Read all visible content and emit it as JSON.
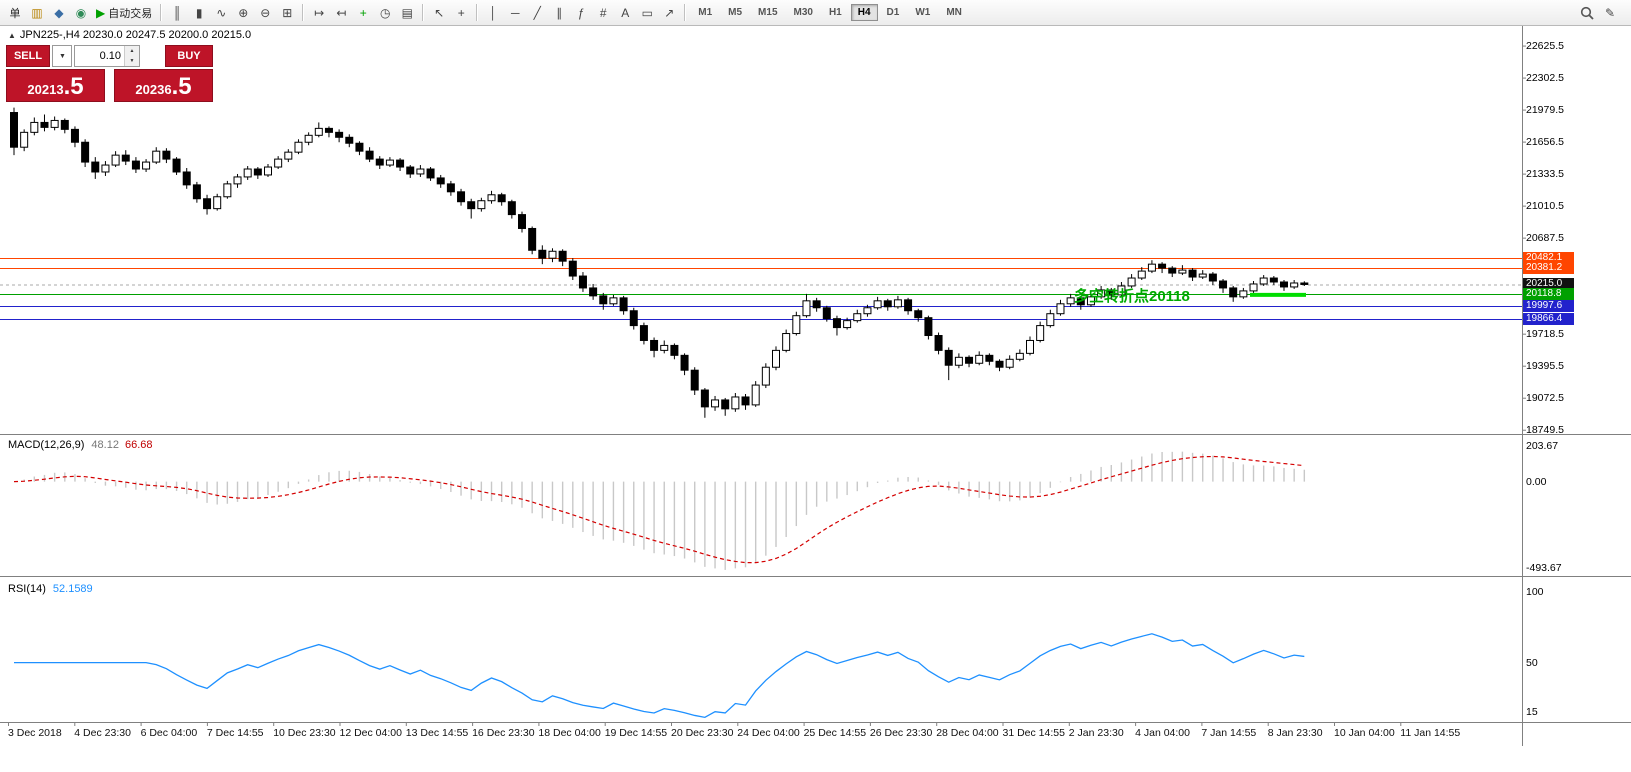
{
  "toolbar": {
    "groups": [
      [
        {
          "name": "new-order-button",
          "text": "单"
        },
        {
          "name": "charts-icon",
          "glyph": "▥",
          "color": "#B8860B"
        },
        {
          "name": "profiles-icon",
          "glyph": "◆",
          "color": "#3A6EA5"
        },
        {
          "name": "market-watch-icon",
          "glyph": "◉",
          "color": "#2E8B57"
        },
        {
          "name": "autotrading-button",
          "glyph": "▶",
          "color": "#00A000",
          "text": "自动交易"
        }
      ],
      [
        {
          "name": "bar-chart-icon",
          "glyph": "║"
        },
        {
          "name": "candlestick-chart-icon",
          "glyph": "▮"
        },
        {
          "name": "line-chart-icon",
          "glyph": "∿"
        },
        {
          "name": "zoom-in-icon",
          "glyph": "⊕"
        },
        {
          "name": "zoom-out-icon",
          "glyph": "⊖"
        },
        {
          "name": "tile-windows-icon",
          "glyph": "⊞"
        }
      ],
      [
        {
          "name": "auto-scroll-icon",
          "glyph": "↦"
        },
        {
          "name": "chart-shift-icon",
          "glyph": "↤"
        },
        {
          "name": "indicators-icon",
          "glyph": "+",
          "color": "#00A000"
        },
        {
          "name": "periods-icon",
          "glyph": "◷"
        },
        {
          "name": "templates-icon",
          "glyph": "▤"
        }
      ],
      [
        {
          "name": "cursor-icon",
          "glyph": "↖"
        },
        {
          "name": "crosshair-icon",
          "glyph": "+"
        }
      ],
      [
        {
          "name": "vertical-line-icon",
          "glyph": "│"
        },
        {
          "name": "horizontal-line-icon",
          "glyph": "─"
        },
        {
          "name": "trendline-icon",
          "glyph": "╱"
        },
        {
          "name": "channel-icon",
          "glyph": "∥"
        },
        {
          "name": "fibonacci-icon",
          "glyph": "ƒ"
        },
        {
          "name": "cycle-lines-icon",
          "glyph": "#"
        },
        {
          "name": "text-icon",
          "glyph": "A"
        },
        {
          "name": "label-icon",
          "glyph": "▭"
        },
        {
          "name": "arrows-icon",
          "glyph": "↗"
        }
      ]
    ],
    "timeframes": [
      "M1",
      "M5",
      "M15",
      "M30",
      "H1",
      "H4",
      "D1",
      "W1",
      "MN"
    ],
    "active_timeframe": "H4",
    "right_icons": [
      {
        "name": "search-icon"
      },
      {
        "name": "edit-icon",
        "glyph": "✎"
      }
    ]
  },
  "chart": {
    "title_icon": "▲",
    "symbol_title": "JPN225-,H4  20230.0 20247.5 20200.0 20215.0",
    "trade_panel": {
      "sell_label": "SELL",
      "buy_label": "BUY",
      "dropdown_glyph": "▼",
      "spin_up": "▲",
      "spin_down": "▼",
      "volume": "0.10",
      "sell_price_main": "20213",
      "sell_price_pips": ".5",
      "buy_price_main": "20236",
      "buy_price_pips": ".5"
    }
  },
  "chart_data": {
    "type": "candlestick",
    "symbol": "JPN225-",
    "timeframe": "H4",
    "current_bar": {
      "open": 20230.0,
      "high": 20247.5,
      "low": 20200.0,
      "close": 20215.0
    },
    "bid": 20213.5,
    "ask": 20236.5,
    "y_ticks": [
      22625.5,
      22302.5,
      21979.5,
      21656.5,
      21333.5,
      21010.5,
      20687.5,
      19718.5,
      19395.5,
      19072.5,
      18749.5
    ],
    "x_labels": [
      "3 Dec 2018",
      "4 Dec 23:30",
      "6 Dec 04:00",
      "7 Dec 14:55",
      "10 Dec 23:30",
      "12 Dec 04:00",
      "13 Dec 14:55",
      "16 Dec 23:30",
      "18 Dec 04:00",
      "19 Dec 14:55",
      "20 Dec 23:30",
      "24 Dec 04:00",
      "25 Dec 14:55",
      "26 Dec 23:30",
      "28 Dec 04:00",
      "31 Dec 14:55",
      "2 Jan 23:30",
      "4 Jan 04:00",
      "7 Jan 14:55",
      "8 Jan 23:30",
      "10 Jan 04:00",
      "11 Jan 14:55"
    ],
    "hlines": [
      {
        "price": 20482.1,
        "color": "#FF4500",
        "label": "20482.1"
      },
      {
        "price": 20381.2,
        "color": "#FF4500",
        "label": "20381.2"
      },
      {
        "price": 20215.0,
        "color": "#A9A9A9",
        "label": "20215.0",
        "style": "bid",
        "badge_color": "#111111"
      },
      {
        "price": 20118.8,
        "color": "#00A000",
        "label": "20118.8"
      },
      {
        "price": 19997.6,
        "color": "#2222CC",
        "label": "19997.6"
      },
      {
        "price": 19866.4,
        "color": "#2222CC",
        "label": "19866.4"
      }
    ],
    "annotation": {
      "text": "多空转折点20118",
      "color": "#00AA00"
    },
    "highlight_segment": {
      "price": 20110,
      "color": "#00DD00"
    },
    "indicators": [
      {
        "name": "MACD(12,26,9)",
        "values": [
          "48.12",
          "66.68"
        ],
        "axis": [
          "203.67",
          "0.00",
          "-493.67"
        ]
      },
      {
        "name": "RSI(14)",
        "values": [
          "52.1589"
        ],
        "axis": [
          "100",
          "50",
          "15"
        ]
      }
    ],
    "ohlc": [
      [
        21950,
        22000,
        21520,
        21600
      ],
      [
        21600,
        21780,
        21560,
        21750
      ],
      [
        21750,
        21900,
        21720,
        21850
      ],
      [
        21850,
        21930,
        21760,
        21800
      ],
      [
        21800,
        21910,
        21770,
        21870
      ],
      [
        21870,
        21890,
        21740,
        21780
      ],
      [
        21780,
        21810,
        21600,
        21650
      ],
      [
        21650,
        21680,
        21400,
        21450
      ],
      [
        21450,
        21500,
        21280,
        21350
      ],
      [
        21350,
        21460,
        21310,
        21420
      ],
      [
        21420,
        21560,
        21400,
        21520
      ],
      [
        21520,
        21570,
        21420,
        21460
      ],
      [
        21460,
        21500,
        21340,
        21380
      ],
      [
        21380,
        21480,
        21350,
        21450
      ],
      [
        21450,
        21600,
        21430,
        21560
      ],
      [
        21560,
        21590,
        21440,
        21480
      ],
      [
        21480,
        21500,
        21320,
        21350
      ],
      [
        21350,
        21390,
        21180,
        21220
      ],
      [
        21220,
        21250,
        21040,
        21080
      ],
      [
        21080,
        21120,
        20920,
        20980
      ],
      [
        20980,
        21130,
        20960,
        21100
      ],
      [
        21100,
        21260,
        21080,
        21230
      ],
      [
        21230,
        21330,
        21190,
        21300
      ],
      [
        21300,
        21410,
        21270,
        21380
      ],
      [
        21380,
        21400,
        21280,
        21320
      ],
      [
        21320,
        21430,
        21300,
        21400
      ],
      [
        21400,
        21510,
        21380,
        21480
      ],
      [
        21480,
        21580,
        21450,
        21550
      ],
      [
        21550,
        21680,
        21530,
        21650
      ],
      [
        21650,
        21750,
        21620,
        21720
      ],
      [
        21720,
        21850,
        21700,
        21790
      ],
      [
        21790,
        21810,
        21700,
        21750
      ],
      [
        21750,
        21780,
        21650,
        21700
      ],
      [
        21700,
        21730,
        21600,
        21640
      ],
      [
        21640,
        21660,
        21520,
        21560
      ],
      [
        21560,
        21600,
        21450,
        21480
      ],
      [
        21480,
        21510,
        21380,
        21420
      ],
      [
        21420,
        21500,
        21400,
        21470
      ],
      [
        21470,
        21490,
        21360,
        21400
      ],
      [
        21400,
        21420,
        21290,
        21330
      ],
      [
        21330,
        21420,
        21300,
        21380
      ],
      [
        21380,
        21400,
        21260,
        21290
      ],
      [
        21290,
        21320,
        21190,
        21230
      ],
      [
        21230,
        21260,
        21110,
        21150
      ],
      [
        21150,
        21180,
        21010,
        21050
      ],
      [
        21050,
        21080,
        20880,
        20980
      ],
      [
        20980,
        21090,
        20950,
        21060
      ],
      [
        21060,
        21160,
        21030,
        21120
      ],
      [
        21120,
        21140,
        21010,
        21050
      ],
      [
        21050,
        21070,
        20880,
        20920
      ],
      [
        20920,
        20950,
        20740,
        20780
      ],
      [
        20780,
        20800,
        20520,
        20560
      ],
      [
        20560,
        20610,
        20420,
        20480
      ],
      [
        20480,
        20580,
        20440,
        20550
      ],
      [
        20550,
        20570,
        20400,
        20450
      ],
      [
        20450,
        20480,
        20260,
        20300
      ],
      [
        20300,
        20340,
        20140,
        20180
      ],
      [
        20180,
        20220,
        20060,
        20100
      ],
      [
        20100,
        20130,
        19960,
        20020
      ],
      [
        20020,
        20110,
        20000,
        20080
      ],
      [
        20080,
        20100,
        19910,
        19950
      ],
      [
        19950,
        19980,
        19760,
        19800
      ],
      [
        19800,
        19830,
        19610,
        19650
      ],
      [
        19650,
        19680,
        19480,
        19550
      ],
      [
        19550,
        19650,
        19520,
        19600
      ],
      [
        19600,
        19620,
        19460,
        19500
      ],
      [
        19500,
        19520,
        19300,
        19350
      ],
      [
        19350,
        19380,
        19100,
        19150
      ],
      [
        19150,
        19170,
        18870,
        18980
      ],
      [
        18980,
        19090,
        18940,
        19050
      ],
      [
        19050,
        19070,
        18890,
        18960
      ],
      [
        18960,
        19120,
        18930,
        19080
      ],
      [
        19080,
        19110,
        18950,
        19000
      ],
      [
        19000,
        19240,
        18980,
        19200
      ],
      [
        19200,
        19420,
        19170,
        19380
      ],
      [
        19380,
        19590,
        19350,
        19550
      ],
      [
        19550,
        19760,
        19530,
        19720
      ],
      [
        19720,
        19940,
        19700,
        19900
      ],
      [
        19900,
        20120,
        19880,
        20050
      ],
      [
        20050,
        20080,
        19940,
        19980
      ],
      [
        19980,
        20000,
        19840,
        19870
      ],
      [
        19870,
        19900,
        19700,
        19780
      ],
      [
        19780,
        19880,
        19760,
        19850
      ],
      [
        19850,
        19960,
        19830,
        19920
      ],
      [
        19920,
        20010,
        19890,
        19980
      ],
      [
        19980,
        20090,
        19960,
        20050
      ],
      [
        20050,
        20070,
        19950,
        19990
      ],
      [
        19990,
        20100,
        19970,
        20060
      ],
      [
        20060,
        20080,
        19910,
        19950
      ],
      [
        19950,
        19970,
        19840,
        19880
      ],
      [
        19880,
        19900,
        19660,
        19700
      ],
      [
        19700,
        19730,
        19510,
        19550
      ],
      [
        19550,
        19580,
        19250,
        19400
      ],
      [
        19400,
        19520,
        19370,
        19480
      ],
      [
        19480,
        19500,
        19380,
        19420
      ],
      [
        19420,
        19540,
        19400,
        19500
      ],
      [
        19500,
        19520,
        19400,
        19440
      ],
      [
        19440,
        19460,
        19340,
        19380
      ],
      [
        19380,
        19500,
        19360,
        19460
      ],
      [
        19460,
        19560,
        19440,
        19520
      ],
      [
        19520,
        19690,
        19500,
        19650
      ],
      [
        19650,
        19840,
        19630,
        19800
      ],
      [
        19800,
        19960,
        19780,
        19920
      ],
      [
        19920,
        20060,
        19900,
        20020
      ],
      [
        20020,
        20120,
        19990,
        20080
      ],
      [
        20080,
        20100,
        19960,
        20010
      ],
      [
        20010,
        20130,
        19990,
        20090
      ],
      [
        20090,
        20200,
        20070,
        20160
      ],
      [
        20160,
        20180,
        20060,
        20110
      ],
      [
        20110,
        20240,
        20090,
        20200
      ],
      [
        20200,
        20320,
        20180,
        20280
      ],
      [
        20280,
        20390,
        20260,
        20350
      ],
      [
        20350,
        20460,
        20330,
        20420
      ],
      [
        20420,
        20440,
        20330,
        20380
      ],
      [
        20380,
        20400,
        20290,
        20330
      ],
      [
        20330,
        20410,
        20310,
        20360
      ],
      [
        20360,
        20380,
        20250,
        20290
      ],
      [
        20290,
        20360,
        20270,
        20320
      ],
      [
        20320,
        20340,
        20210,
        20250
      ],
      [
        20250,
        20270,
        20130,
        20180
      ],
      [
        20180,
        20200,
        20040,
        20090
      ],
      [
        20090,
        20180,
        20070,
        20150
      ],
      [
        20150,
        20250,
        20130,
        20220
      ],
      [
        20220,
        20310,
        20200,
        20280
      ],
      [
        20280,
        20300,
        20210,
        20240
      ],
      [
        20240,
        20260,
        20150,
        20190
      ],
      [
        20190,
        20260,
        20170,
        20230
      ],
      [
        20230,
        20247.5,
        20200,
        20215
      ]
    ]
  }
}
